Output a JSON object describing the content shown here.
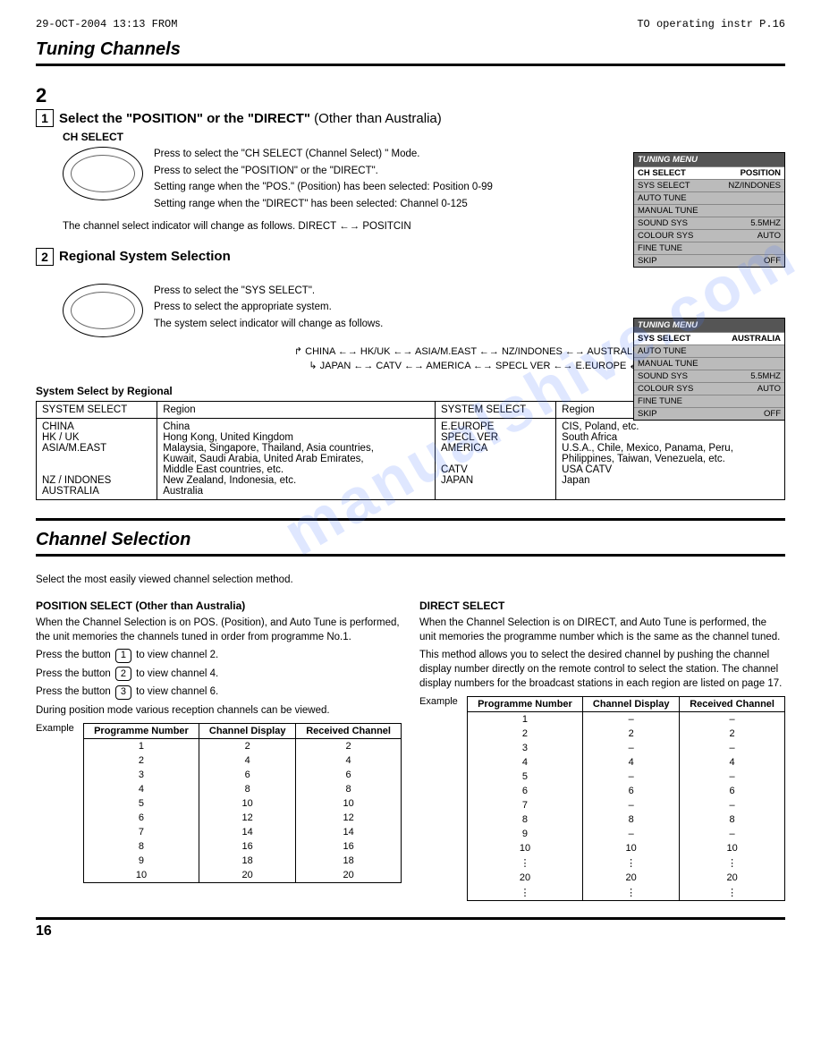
{
  "fax": {
    "left": "29-OCT-2004  13:13   FROM",
    "right": "TO  operating instr      P.16"
  },
  "title1": "Tuning Channels",
  "bigNum": "2",
  "step1": {
    "num": "1",
    "boldA": "Select the \"POSITION\" or the \"DIRECT\"",
    "paren": " (Other than Australia)",
    "chSelect": "CH SELECT",
    "line1": "Press to select the \"CH SELECT (Channel Select) \" Mode.",
    "line2": "Press to select the \"POSITION\" or the \"DIRECT\".",
    "line3": "Setting range when the \"POS.\" (Position) has been selected: Position 0-99",
    "line4": "Setting range when the \"DIRECT\" has been selected: Channel 0-125",
    "indicator": "The channel select indicator will change as follows.      DIRECT ←→ POSITCIN"
  },
  "step2": {
    "num": "2",
    "title": "Regional System Selection",
    "line1": "Press to select the \"SYS SELECT\".",
    "line2": "Press to select the appropriate system.",
    "line3": "The system select indicator will change as follows.",
    "cycle1": "↱ CHINA ←→ HK/UK ←→ ASIA/M.EAST ←→ NZ/INDONES ←→ AUSTRALIA ↴",
    "cycle2": "↳ JAPAN ←→ CATV ←→ AMERICA ←→ SPECL VER ←→ E.EUROPE ↲"
  },
  "osd1": {
    "header": "TUNING MENU",
    "rows": [
      [
        "CH SELECT",
        "POSITION"
      ],
      [
        "SYS SELECT",
        "NZ/INDONES"
      ],
      [
        "AUTO TUNE",
        ""
      ],
      [
        "MANUAL TUNE",
        ""
      ],
      [
        "SOUND SYS",
        "5.5MHZ"
      ],
      [
        "COLOUR SYS",
        "AUTO"
      ],
      [
        "FINE TUNE",
        ""
      ],
      [
        "SKIP",
        "OFF"
      ]
    ],
    "selected": 0
  },
  "osd2": {
    "header": "TUNING MENU",
    "rows": [
      [
        "SYS SELECT",
        "AUSTRALIA"
      ],
      [
        "AUTO TUNE",
        ""
      ],
      [
        "MANUAL TUNE",
        ""
      ],
      [
        "SOUND SYS",
        "5.5MHZ"
      ],
      [
        "COLOUR SYS",
        "AUTO"
      ],
      [
        "FINE TUNE",
        ""
      ],
      [
        "SKIP",
        "OFF"
      ]
    ],
    "selected": 0
  },
  "regionTable": {
    "title": "System Select by Regional",
    "headers": [
      "SYSTEM SELECT",
      "Region",
      "SYSTEM SELECT",
      "Region"
    ],
    "leftSys": [
      "CHINA",
      "HK / UK",
      "ASIA/M.EAST",
      "",
      "",
      "NZ / INDONES",
      "AUSTRALIA"
    ],
    "leftReg": [
      "China",
      "Hong Kong, United Kingdom",
      "Malaysia, Singapore, Thailand, Asia countries,",
      "Kuwait, Saudi Arabia, United Arab Emirates,",
      "Middle East countries, etc.",
      "New Zealand, Indonesia, etc.",
      "Australia"
    ],
    "rightSys": [
      "E.EUROPE",
      "SPECL VER",
      "AMERICA",
      "",
      "CATV",
      "JAPAN",
      ""
    ],
    "rightReg": [
      "CIS, Poland, etc.",
      "South Africa",
      "U.S.A., Chile, Mexico, Panama, Peru,",
      "Philippines, Taiwan, Venezuela, etc.",
      "USA CATV",
      "Japan",
      ""
    ]
  },
  "title2": "Channel Selection",
  "intro2": "Select the most easily viewed channel selection method.",
  "left": {
    "h": "POSITION SELECT (Other than Australia)",
    "p1": "When the Channel Selection is on POS. (Position), and Auto Tune is performed, the unit memories the channels tuned in order from programme No.1.",
    "b1a": "Press the button ",
    "b1n": "1",
    "b1b": " to view channel 2.",
    "b2a": "Press the button ",
    "b2n": "2",
    "b2b": " to view channel 4.",
    "b3a": "Press the button ",
    "b3n": "3",
    "b3b": " to view channel 6.",
    "p2": "During position mode various reception channels can be viewed.",
    "ex": "Example",
    "th": [
      "Programme Number",
      "Channel Display",
      "Received Channel"
    ],
    "rows": [
      [
        "1",
        "2",
        "2"
      ],
      [
        "2",
        "4",
        "4"
      ],
      [
        "3",
        "6",
        "6"
      ],
      [
        "4",
        "8",
        "8"
      ],
      [
        "5",
        "10",
        "10"
      ],
      [
        "6",
        "12",
        "12"
      ],
      [
        "7",
        "14",
        "14"
      ],
      [
        "8",
        "16",
        "16"
      ],
      [
        "9",
        "18",
        "18"
      ],
      [
        "10",
        "20",
        "20"
      ]
    ]
  },
  "right": {
    "h": "DIRECT SELECT",
    "p1": "When the Channel Selection is on DIRECT, and Auto Tune is performed, the unit memories the programme number which is the same as the channel tuned.",
    "p2": "This method allows you to select the desired channel by pushing the channel display number directly on the remote control to select the station. The channel display numbers for the broadcast stations in each region are listed on page 17.",
    "ex": "Example",
    "th": [
      "Programme Number",
      "Channel Display",
      "Received Channel"
    ],
    "rows": [
      [
        "1",
        "–",
        "–"
      ],
      [
        "2",
        "2",
        "2"
      ],
      [
        "3",
        "–",
        "–"
      ],
      [
        "4",
        "4",
        "4"
      ],
      [
        "5",
        "–",
        "–"
      ],
      [
        "6",
        "6",
        "6"
      ],
      [
        "7",
        "–",
        "–"
      ],
      [
        "8",
        "8",
        "8"
      ],
      [
        "9",
        "–",
        "–"
      ],
      [
        "10",
        "10",
        "10"
      ],
      [
        "⋮",
        "⋮",
        "⋮"
      ],
      [
        "20",
        "20",
        "20"
      ],
      [
        "⋮",
        "⋮",
        "⋮"
      ]
    ]
  },
  "pageNum": "16",
  "watermark": "manualshive.com"
}
